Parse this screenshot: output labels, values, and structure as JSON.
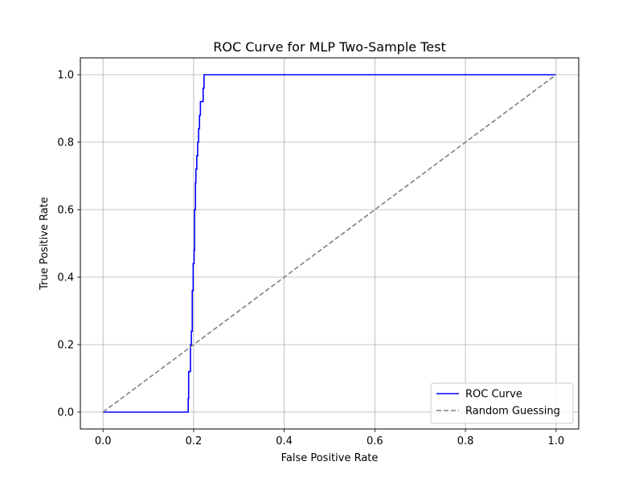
{
  "chart_data": {
    "type": "line",
    "title": "ROC Curve for MLP Two-Sample Test",
    "xlabel": "False Positive Rate",
    "ylabel": "True Positive Rate",
    "xlim": [
      -0.05,
      1.05
    ],
    "ylim": [
      -0.05,
      1.05
    ],
    "xticks": [
      0.0,
      0.2,
      0.4,
      0.6,
      0.8,
      1.0
    ],
    "yticks": [
      0.0,
      0.2,
      0.4,
      0.6,
      0.8,
      1.0
    ],
    "xtick_labels": [
      "0.0",
      "0.2",
      "0.4",
      "0.6",
      "0.8",
      "1.0"
    ],
    "ytick_labels": [
      "0.0",
      "0.2",
      "0.4",
      "0.6",
      "0.8",
      "1.0"
    ],
    "grid": true,
    "legend_position": "bottom-right",
    "series": [
      {
        "name": "ROC Curve",
        "color": "#0000ff",
        "style": "solid",
        "x": [
          0.0,
          0.188,
          0.188,
          0.189,
          0.189,
          0.193,
          0.193,
          0.195,
          0.195,
          0.197,
          0.197,
          0.199,
          0.199,
          0.201,
          0.201,
          0.202,
          0.202,
          0.204,
          0.204,
          0.205,
          0.205,
          0.207,
          0.207,
          0.209,
          0.209,
          0.211,
          0.211,
          0.213,
          0.213,
          0.215,
          0.215,
          0.216,
          0.216,
          0.221,
          0.221,
          0.223,
          0.223,
          1.0
        ],
        "y": [
          0.0,
          0.0,
          0.04,
          0.04,
          0.12,
          0.12,
          0.2,
          0.2,
          0.24,
          0.24,
          0.36,
          0.36,
          0.44,
          0.44,
          0.48,
          0.48,
          0.6,
          0.6,
          0.68,
          0.68,
          0.72,
          0.72,
          0.76,
          0.76,
          0.8,
          0.8,
          0.84,
          0.84,
          0.88,
          0.88,
          0.92,
          0.92,
          0.92,
          0.92,
          0.96,
          0.96,
          1.0,
          1.0
        ]
      },
      {
        "name": "Random Guessing",
        "color": "#808080",
        "style": "dashed",
        "x": [
          0.0,
          1.0
        ],
        "y": [
          0.0,
          1.0
        ]
      }
    ]
  }
}
